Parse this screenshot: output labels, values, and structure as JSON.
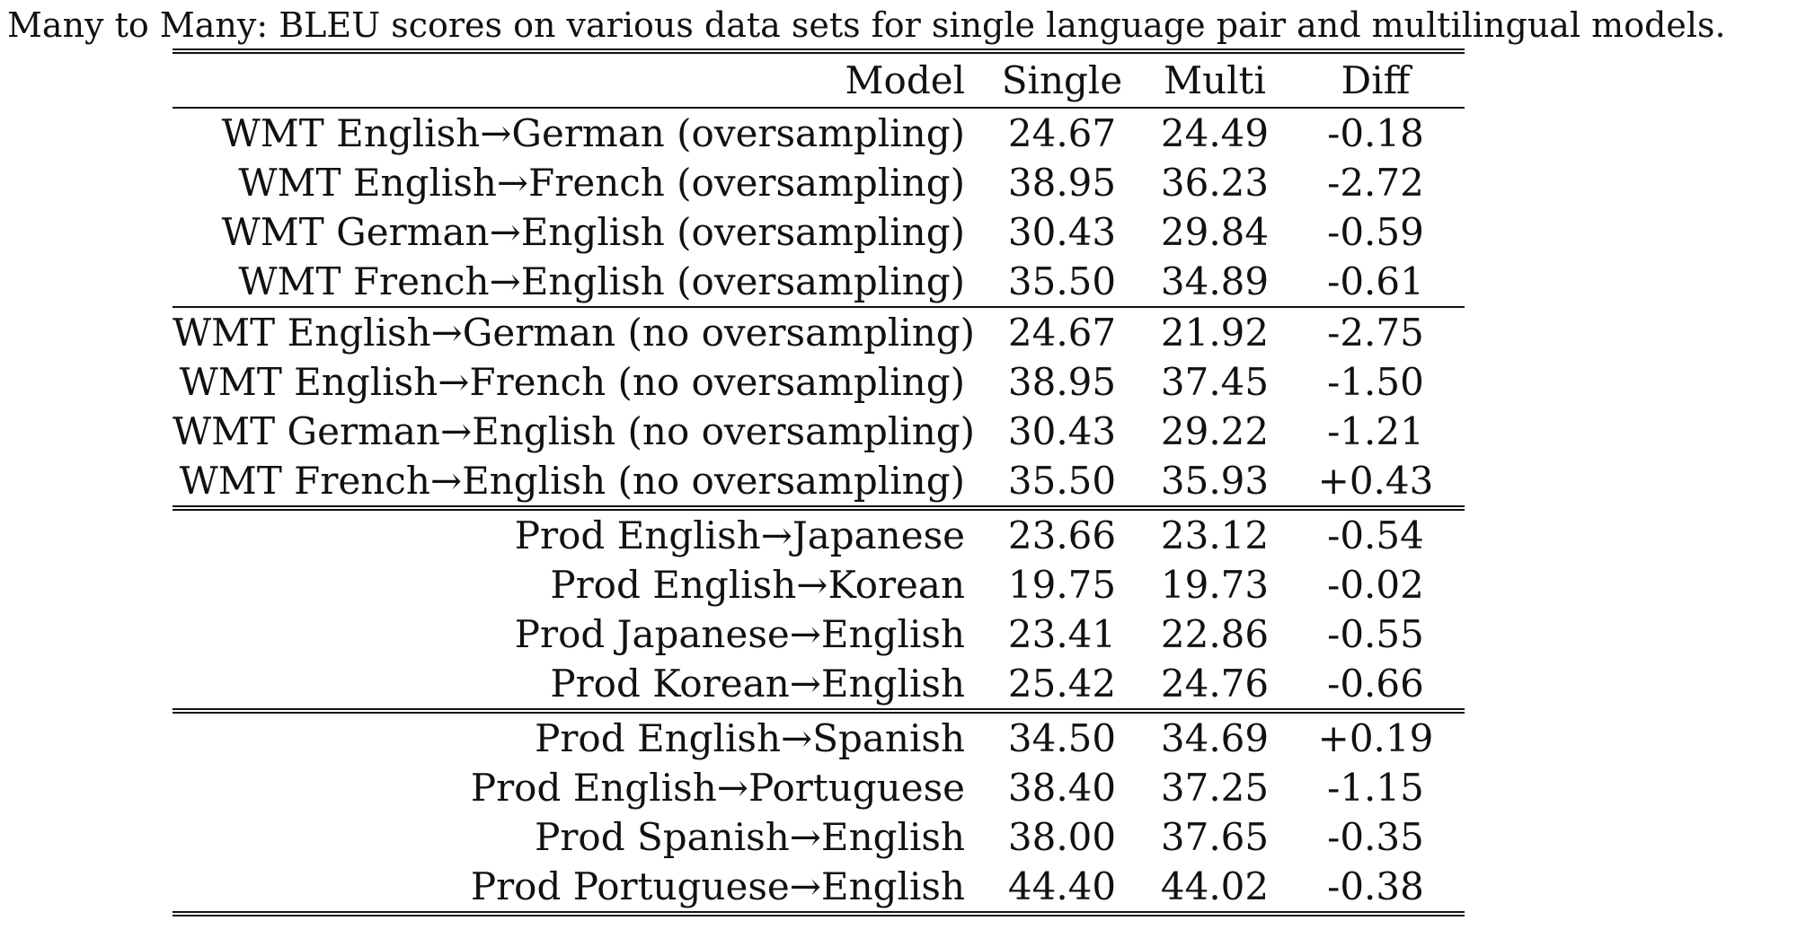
{
  "caption": "Many to Many: BLEU scores on various data sets for single language pair and multilingual models.",
  "table": {
    "headers": {
      "model": "Model",
      "single": "Single",
      "multi": "Multi",
      "diff": "Diff"
    },
    "groups": [
      {
        "rows": [
          {
            "model": "WMT English→German (oversampling)",
            "single": "24.67",
            "multi": "24.49",
            "diff": "-0.18"
          },
          {
            "model": "WMT English→French (oversampling)",
            "single": "38.95",
            "multi": "36.23",
            "diff": "-2.72"
          },
          {
            "model": "WMT German→English (oversampling)",
            "single": "30.43",
            "multi": "29.84",
            "diff": "-0.59"
          },
          {
            "model": "WMT French→English (oversampling)",
            "single": "35.50",
            "multi": "34.89",
            "diff": "-0.61"
          }
        ]
      },
      {
        "rows": [
          {
            "model": "WMT English→German (no oversampling)",
            "single": "24.67",
            "multi": "21.92",
            "diff": "-2.75"
          },
          {
            "model": "WMT English→French (no oversampling)",
            "single": "38.95",
            "multi": "37.45",
            "diff": "-1.50"
          },
          {
            "model": "WMT German→English (no oversampling)",
            "single": "30.43",
            "multi": "29.22",
            "diff": "-1.21"
          },
          {
            "model": "WMT French→English (no oversampling)",
            "single": "35.50",
            "multi": "35.93",
            "diff": "+0.43"
          }
        ]
      },
      {
        "rows": [
          {
            "model": "Prod English→Japanese",
            "single": "23.66",
            "multi": "23.12",
            "diff": "-0.54"
          },
          {
            "model": "Prod English→Korean",
            "single": "19.75",
            "multi": "19.73",
            "diff": "-0.02"
          },
          {
            "model": "Prod Japanese→English",
            "single": "23.41",
            "multi": "22.86",
            "diff": "-0.55"
          },
          {
            "model": "Prod Korean→English",
            "single": "25.42",
            "multi": "24.76",
            "diff": "-0.66"
          }
        ]
      },
      {
        "rows": [
          {
            "model": "Prod English→Spanish",
            "single": "34.50",
            "multi": "34.69",
            "diff": "+0.19"
          },
          {
            "model": "Prod English→Portuguese",
            "single": "38.40",
            "multi": "37.25",
            "diff": "-1.15"
          },
          {
            "model": "Prod Spanish→English",
            "single": "38.00",
            "multi": "37.65",
            "diff": "-0.35"
          },
          {
            "model": "Prod Portuguese→English",
            "single": "44.40",
            "multi": "44.02",
            "diff": "-0.38"
          }
        ]
      }
    ]
  }
}
